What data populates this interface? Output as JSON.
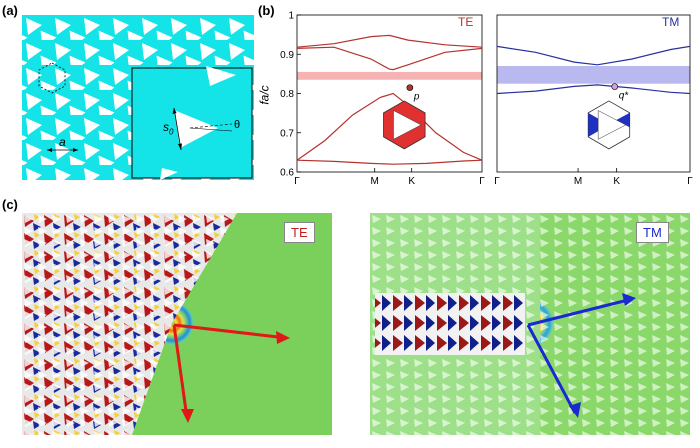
{
  "labels": {
    "a": "(a)",
    "b": "(b)",
    "c": "(c)"
  },
  "panel_a": {
    "lattice_const": "a",
    "side": "s",
    "side_sub": "0",
    "angle": "θ"
  },
  "chart_data": [
    {
      "type": "line",
      "mode": "TE",
      "color": "#b3332e",
      "band_color": "#f6b3b3",
      "ylabel": "fa/c",
      "xlabel": "",
      "ylim": [
        0.6,
        1.0
      ],
      "yticks": [
        "0.6",
        "0.7",
        "0.8",
        "0.9",
        "1"
      ],
      "xticks": [
        "Γ",
        "M",
        "K",
        "Γ"
      ],
      "gap": [
        0.835,
        0.855
      ],
      "point_label": "p",
      "series": [
        {
          "x": [
            0,
            0.2,
            0.4,
            0.5,
            0.6,
            0.8,
            1.0
          ],
          "y": [
            0.918,
            0.927,
            0.945,
            0.948,
            0.936,
            0.924,
            0.918
          ]
        },
        {
          "x": [
            0,
            0.2,
            0.4,
            0.5,
            0.52,
            0.6,
            0.8,
            1.0
          ],
          "y": [
            0.915,
            0.918,
            0.888,
            0.862,
            0.861,
            0.873,
            0.905,
            0.915
          ]
        },
        {
          "x": [
            0,
            0.15,
            0.3,
            0.45,
            0.52,
            0.6,
            0.75,
            0.9,
            1.0
          ],
          "y": [
            0.63,
            0.68,
            0.745,
            0.79,
            0.8,
            0.77,
            0.7,
            0.65,
            0.63
          ]
        },
        {
          "x": [
            0,
            0.2,
            0.4,
            0.52,
            0.7,
            0.9,
            1.0
          ],
          "y": [
            0.63,
            0.627,
            0.622,
            0.62,
            0.622,
            0.628,
            0.63
          ]
        }
      ]
    },
    {
      "type": "line",
      "mode": "TM",
      "color": "#2630a0",
      "band_color": "#b9b9ef",
      "ylabel": "",
      "xlabel": "",
      "ylim": [
        0.6,
        1.0
      ],
      "xticks": [
        "Γ",
        "M",
        "K",
        "Γ"
      ],
      "gap": [
        0.825,
        0.87
      ],
      "point_label": "q*",
      "series": [
        {
          "x": [
            0,
            0.2,
            0.4,
            0.52,
            0.7,
            0.9,
            1.0
          ],
          "y": [
            0.92,
            0.905,
            0.88,
            0.873,
            0.888,
            0.912,
            0.92
          ]
        },
        {
          "x": [
            0,
            0.2,
            0.4,
            0.52,
            0.7,
            0.9,
            1.0
          ],
          "y": [
            0.8,
            0.806,
            0.818,
            0.822,
            0.814,
            0.803,
            0.8
          ]
        }
      ]
    }
  ],
  "panel_c": {
    "left_tag": "TE",
    "right_tag": "TM"
  }
}
